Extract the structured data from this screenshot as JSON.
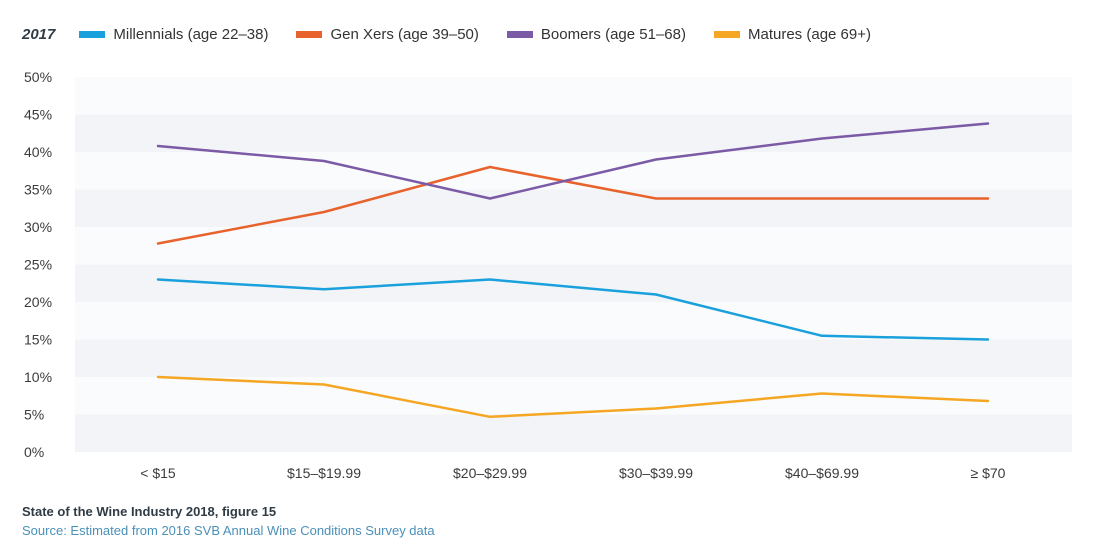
{
  "legend": {
    "year": "2017"
  },
  "chart_data": {
    "type": "line",
    "title": "",
    "xlabel": "",
    "ylabel": "",
    "categories": [
      "< $15",
      "$15–$19.99",
      "$20–$29.99",
      "$30–$39.99",
      "$40–$69.99",
      "≥ $70"
    ],
    "ylim": [
      0,
      50
    ],
    "yticks": [
      "0%",
      "5%",
      "10%",
      "15%",
      "20%",
      "25%",
      "30%",
      "35%",
      "40%",
      "45%",
      "50%"
    ],
    "series": [
      {
        "name": "Millennials (age 22–38)",
        "color": "#1aa0dc",
        "values": [
          23,
          21.7,
          23,
          21,
          15.5,
          15
        ]
      },
      {
        "name": "Gen Xers (age 39–50)",
        "color": "#e8622c",
        "values": [
          27.8,
          32,
          38,
          33.8,
          33.8,
          33.8
        ]
      },
      {
        "name": "Boomers (age 51–68)",
        "color": "#7b5aa6",
        "values": [
          40.8,
          38.8,
          33.8,
          39,
          41.8,
          43.8
        ]
      },
      {
        "name": "Matures (age 69+)",
        "color": "#f5a623",
        "values": [
          10,
          9,
          4.7,
          5.8,
          7.8,
          6.8
        ]
      }
    ],
    "band_colors": [
      "#f2f4f7",
      "#fafbfc"
    ]
  },
  "footer": {
    "title": "State of the Wine Industry 2018, figure 15",
    "source": "Source: Estimated from 2016 SVB Annual Wine Conditions Survey data"
  }
}
